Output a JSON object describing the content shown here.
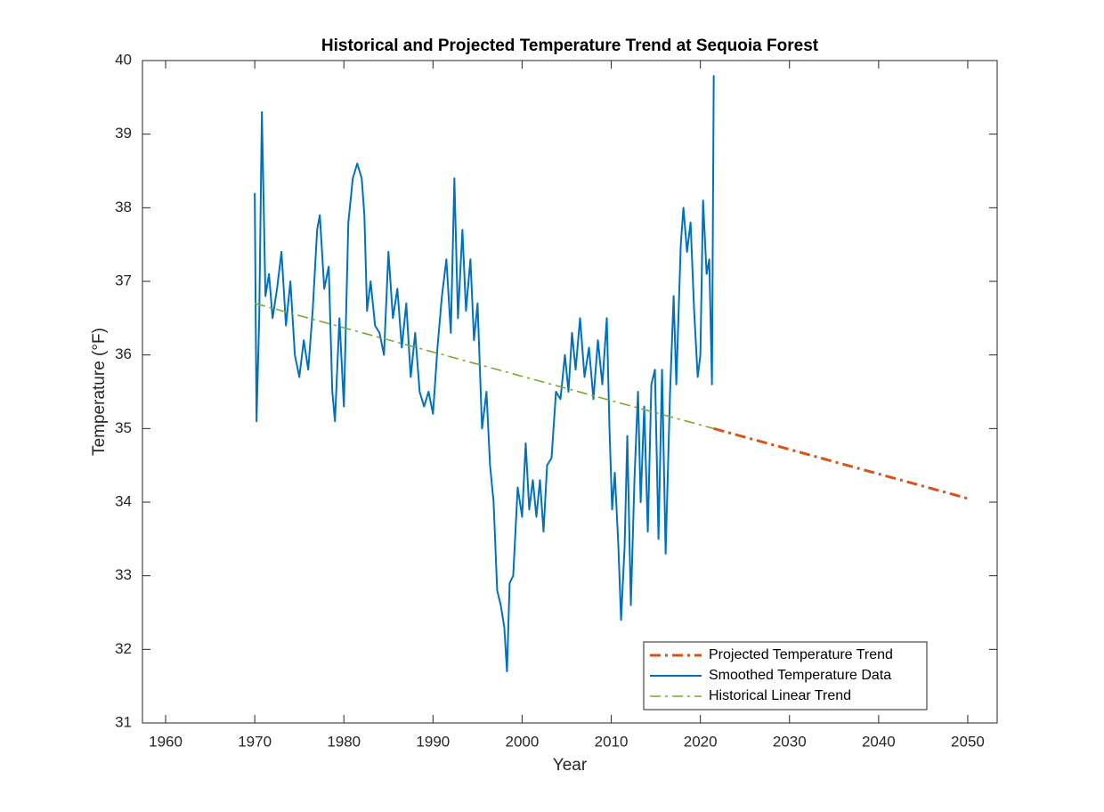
{
  "chart_data": {
    "type": "line",
    "title": "Historical and Projected Temperature Trend at Sequoia Forest",
    "x_label": "Year",
    "y_label": "Temperature (°F)",
    "xlim": [
      1957.4,
      2053.3
    ],
    "ylim": [
      31,
      40
    ],
    "xticks": [
      1960,
      1970,
      1980,
      1990,
      2000,
      2010,
      2020,
      2030,
      2040,
      2050
    ],
    "yticks": [
      31,
      32,
      33,
      34,
      35,
      36,
      37,
      38,
      39,
      40
    ],
    "grid": false,
    "legend_position": "southeast",
    "series": [
      {
        "name": "Projected Temperature Trend",
        "color": "#D95319",
        "linestyle": "-.",
        "linewidth": 3,
        "x": [
          2021.5,
          2050
        ],
        "values": [
          35.0,
          34.05
        ]
      },
      {
        "name": "Smoothed Temperature Data",
        "color": "#0072BD",
        "linestyle": "-",
        "linewidth": 2,
        "x": [
          1970.0,
          1970.2,
          1970.5,
          1970.8,
          1971.2,
          1971.6,
          1972.0,
          1972.5,
          1973.0,
          1973.5,
          1974.0,
          1974.5,
          1975.0,
          1975.5,
          1976.0,
          1976.5,
          1977.0,
          1977.3,
          1977.8,
          1978.3,
          1978.7,
          1979.0,
          1979.5,
          1980.0,
          1980.5,
          1981.0,
          1981.5,
          1982.0,
          1982.3,
          1982.6,
          1983.0,
          1983.5,
          1984.0,
          1984.5,
          1985.0,
          1985.5,
          1986.0,
          1986.5,
          1987.0,
          1987.5,
          1988.0,
          1988.5,
          1989.0,
          1989.5,
          1990.0,
          1990.5,
          1991.0,
          1991.5,
          1992.0,
          1992.4,
          1992.8,
          1993.3,
          1993.7,
          1994.2,
          1994.6,
          1995.0,
          1995.5,
          1996.0,
          1996.4,
          1996.8,
          1997.2,
          1997.6,
          1998.0,
          1998.3,
          1998.6,
          1999.0,
          1999.5,
          2000.0,
          2000.4,
          2000.8,
          2001.2,
          2001.6,
          2002.0,
          2002.4,
          2002.8,
          2003.3,
          2003.8,
          2004.3,
          2004.8,
          2005.2,
          2005.6,
          2006.0,
          2006.5,
          2007.0,
          2007.5,
          2008.0,
          2008.5,
          2009.0,
          2009.5,
          2009.8,
          2010.1,
          2010.4,
          2010.8,
          2011.1,
          2011.5,
          2011.8,
          2012.2,
          2012.6,
          2013.0,
          2013.3,
          2013.7,
          2014.1,
          2014.5,
          2014.9,
          2015.3,
          2015.7,
          2016.1,
          2016.6,
          2017.0,
          2017.3,
          2017.8,
          2018.1,
          2018.5,
          2018.9,
          2019.3,
          2019.7,
          2020.0,
          2020.3,
          2020.7,
          2021.0,
          2021.3,
          2021.5
        ],
        "values": [
          38.2,
          35.1,
          36.5,
          39.3,
          36.8,
          37.1,
          36.5,
          36.9,
          37.4,
          36.4,
          37.0,
          36.0,
          35.7,
          36.2,
          35.8,
          36.6,
          37.7,
          37.9,
          36.9,
          37.2,
          35.5,
          35.1,
          36.5,
          35.3,
          37.8,
          38.4,
          38.6,
          38.4,
          37.9,
          36.6,
          37.0,
          36.4,
          36.3,
          36.0,
          37.4,
          36.5,
          36.9,
          36.1,
          36.7,
          35.7,
          36.3,
          35.5,
          35.3,
          35.5,
          35.2,
          36.1,
          36.8,
          37.3,
          36.3,
          38.4,
          36.5,
          37.7,
          36.6,
          37.3,
          36.2,
          36.7,
          35.0,
          35.5,
          34.5,
          34.0,
          32.8,
          32.6,
          32.3,
          31.7,
          32.9,
          33.0,
          34.2,
          33.8,
          34.8,
          33.9,
          34.3,
          33.8,
          34.3,
          33.6,
          34.5,
          34.6,
          35.5,
          35.4,
          36.0,
          35.5,
          36.3,
          35.8,
          36.5,
          35.7,
          36.1,
          35.4,
          36.2,
          35.6,
          36.5,
          35.0,
          33.9,
          34.4,
          33.4,
          32.4,
          33.4,
          34.9,
          32.6,
          34.3,
          35.5,
          34.0,
          35.3,
          33.6,
          35.6,
          35.8,
          33.5,
          35.8,
          33.3,
          35.5,
          36.8,
          35.6,
          37.5,
          38.0,
          37.4,
          37.8,
          36.6,
          35.7,
          36.0,
          38.1,
          37.1,
          37.3,
          35.6,
          39.8
        ]
      },
      {
        "name": "Historical Linear Trend",
        "color": "#77AC30",
        "linestyle": "-.",
        "linewidth": 1.6,
        "x": [
          1970,
          2021.5
        ],
        "values": [
          36.7,
          35.0
        ]
      }
    ]
  }
}
